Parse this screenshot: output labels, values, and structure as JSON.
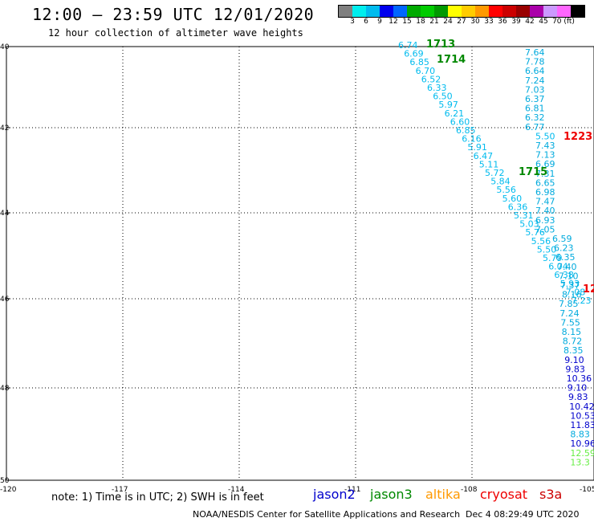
{
  "title": "12:00 – 23:59 UTC 12/01/2020",
  "subtitle": "12 hour collection of altimeter wave heights",
  "legend": {
    "colors": [
      "#7f7f7f",
      "#00eeee",
      "#00bbee",
      "#0000ee",
      "#0066ff",
      "#00aa00",
      "#00cc00",
      "#009900",
      "#ffff00",
      "#ffcc00",
      "#ff9900",
      "#ff0000",
      "#cc0000",
      "#990000",
      "#aa00aa",
      "#cc99ff",
      "#ff66ff",
      "#000000"
    ],
    "labels": [
      "3",
      "6",
      "9",
      "12",
      "15",
      "18",
      "21",
      "24",
      "27",
      "30",
      "33",
      "36",
      "39",
      "42",
      "45",
      "70 (ft)"
    ]
  },
  "axes": {
    "lat_labels": [
      "40",
      "42",
      "44",
      "46",
      "48",
      "50"
    ],
    "lon_labels": [
      "-120",
      "-117",
      "-114",
      "-111",
      "-108",
      "-105"
    ]
  },
  "note": "note: 1) Time is in UTC; 2) SWH is in feet",
  "satellites": [
    {
      "name": "jason2",
      "color": "#0000cc"
    },
    {
      "name": "jason3",
      "color": "#008800"
    },
    {
      "name": "altika",
      "color": "#ff9900"
    },
    {
      "name": "cryosat",
      "color": "#ee0000"
    },
    {
      "name": "s3a",
      "color": "#cc0000"
    }
  ],
  "footer": "NOAA/NESDIS Center for Satellite Applications and Research",
  "footer_time": "Dec  4 08:29:49 UTC 2020",
  "time_labels": [
    {
      "text": "1713",
      "color": "#008800"
    },
    {
      "text": "1714",
      "color": "#008800"
    },
    {
      "text": "1715",
      "color": "#008800"
    },
    {
      "text": "1223",
      "color": "#ee0000"
    },
    {
      "text": "12",
      "color": "#ee0000"
    }
  ],
  "track_left": [
    "6.74",
    "6.69",
    "6.85",
    "6.70",
    "6.52",
    "6.33",
    "6.50",
    "5.97",
    "6.21",
    "6.60",
    "6.85",
    "6.16",
    "5.91",
    "6.47",
    "5.11",
    "5.72",
    "5.84",
    "5.56",
    "5.60",
    "6.36",
    "5.31",
    "5.03",
    "5.76",
    "5.56",
    "5.50",
    "5.79",
    "6.04",
    "6.38",
    "5.93",
    "7.08",
    "7.23"
  ],
  "track_right": [
    "7.64",
    "7.78",
    "6.64",
    "7.24",
    "7.03",
    "6.37",
    "6.81",
    "6.32",
    "6.77",
    "5.50",
    "7.43",
    "7.13",
    "6.69",
    "7.31",
    "6.65",
    "6.98",
    "7.47",
    "7.40",
    "6.93",
    "7.05",
    "6.59",
    "6.23",
    "6.35",
    "7.40",
    "7.10",
    "7.37",
    "8.16",
    "7.85",
    "7.24",
    "7.55",
    "8.15",
    "8.72",
    "8.35",
    "9.10",
    "9.83",
    "10.36",
    "9.10",
    "9.83",
    "10.42",
    "10.53",
    "11.83",
    "8.83",
    "10.96",
    "12.59",
    "13.3"
  ]
}
